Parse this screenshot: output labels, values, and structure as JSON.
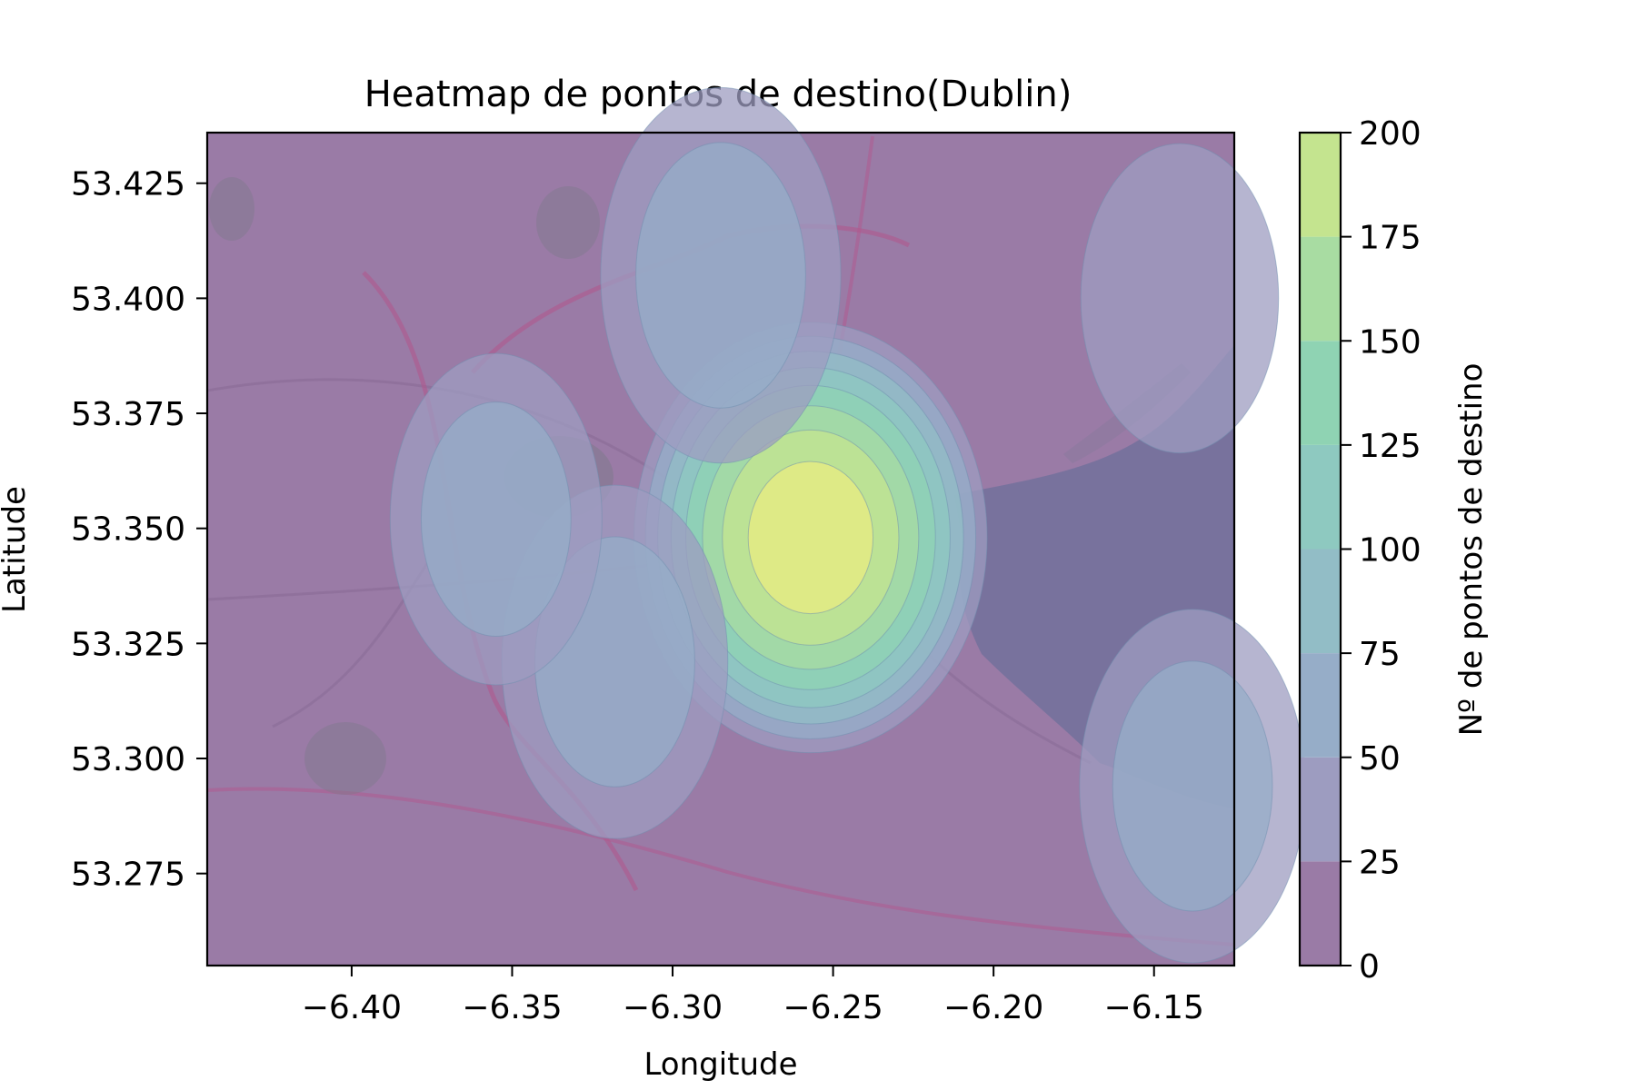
{
  "chart_data": {
    "type": "heatmap",
    "title": "Heatmap de pontos de destino(Dublin)",
    "xlabel": "Longitude",
    "ylabel": "Latitude",
    "xlim": [
      -6.445,
      -6.125
    ],
    "ylim": [
      53.255,
      53.436
    ],
    "x_ticks": [
      -6.4,
      -6.35,
      -6.3,
      -6.25,
      -6.2,
      -6.15
    ],
    "x_tick_labels": [
      "−6.40",
      "−6.35",
      "−6.30",
      "−6.25",
      "−6.20",
      "−6.15"
    ],
    "y_ticks": [
      53.275,
      53.3,
      53.325,
      53.35,
      53.375,
      53.4,
      53.425
    ],
    "y_tick_labels": [
      "53.275",
      "53.300",
      "53.325",
      "53.350",
      "53.375",
      "53.400",
      "53.425"
    ],
    "colorbar": {
      "label": "Nº de pontos de destino",
      "range": [
        0,
        200
      ],
      "ticks": [
        0,
        25,
        50,
        75,
        100,
        125,
        150,
        175,
        200
      ],
      "tick_labels": [
        "0",
        "25",
        "50",
        "75",
        "100",
        "125",
        "150",
        "175",
        "200"
      ],
      "level_colors": [
        "#9a7ba6",
        "#9d9cc0",
        "#96adc8",
        "#92bdc6",
        "#8ec9c0",
        "#8fd3b3",
        "#a8dca2",
        "#c4e48f",
        "#e9ec82"
      ]
    },
    "hotspots": [
      {
        "lon": -6.257,
        "lat": 53.348,
        "peak": 195
      },
      {
        "lon": -6.285,
        "lat": 53.405,
        "peak": 40
      },
      {
        "lon": -6.318,
        "lat": 53.321,
        "peak": 35
      },
      {
        "lon": -6.138,
        "lat": 53.294,
        "peak": 35
      },
      {
        "lon": -6.355,
        "lat": 53.352,
        "peak": 30
      },
      {
        "lon": -6.142,
        "lat": 53.4,
        "peak": 25
      }
    ],
    "grid": false,
    "legend": "none"
  }
}
